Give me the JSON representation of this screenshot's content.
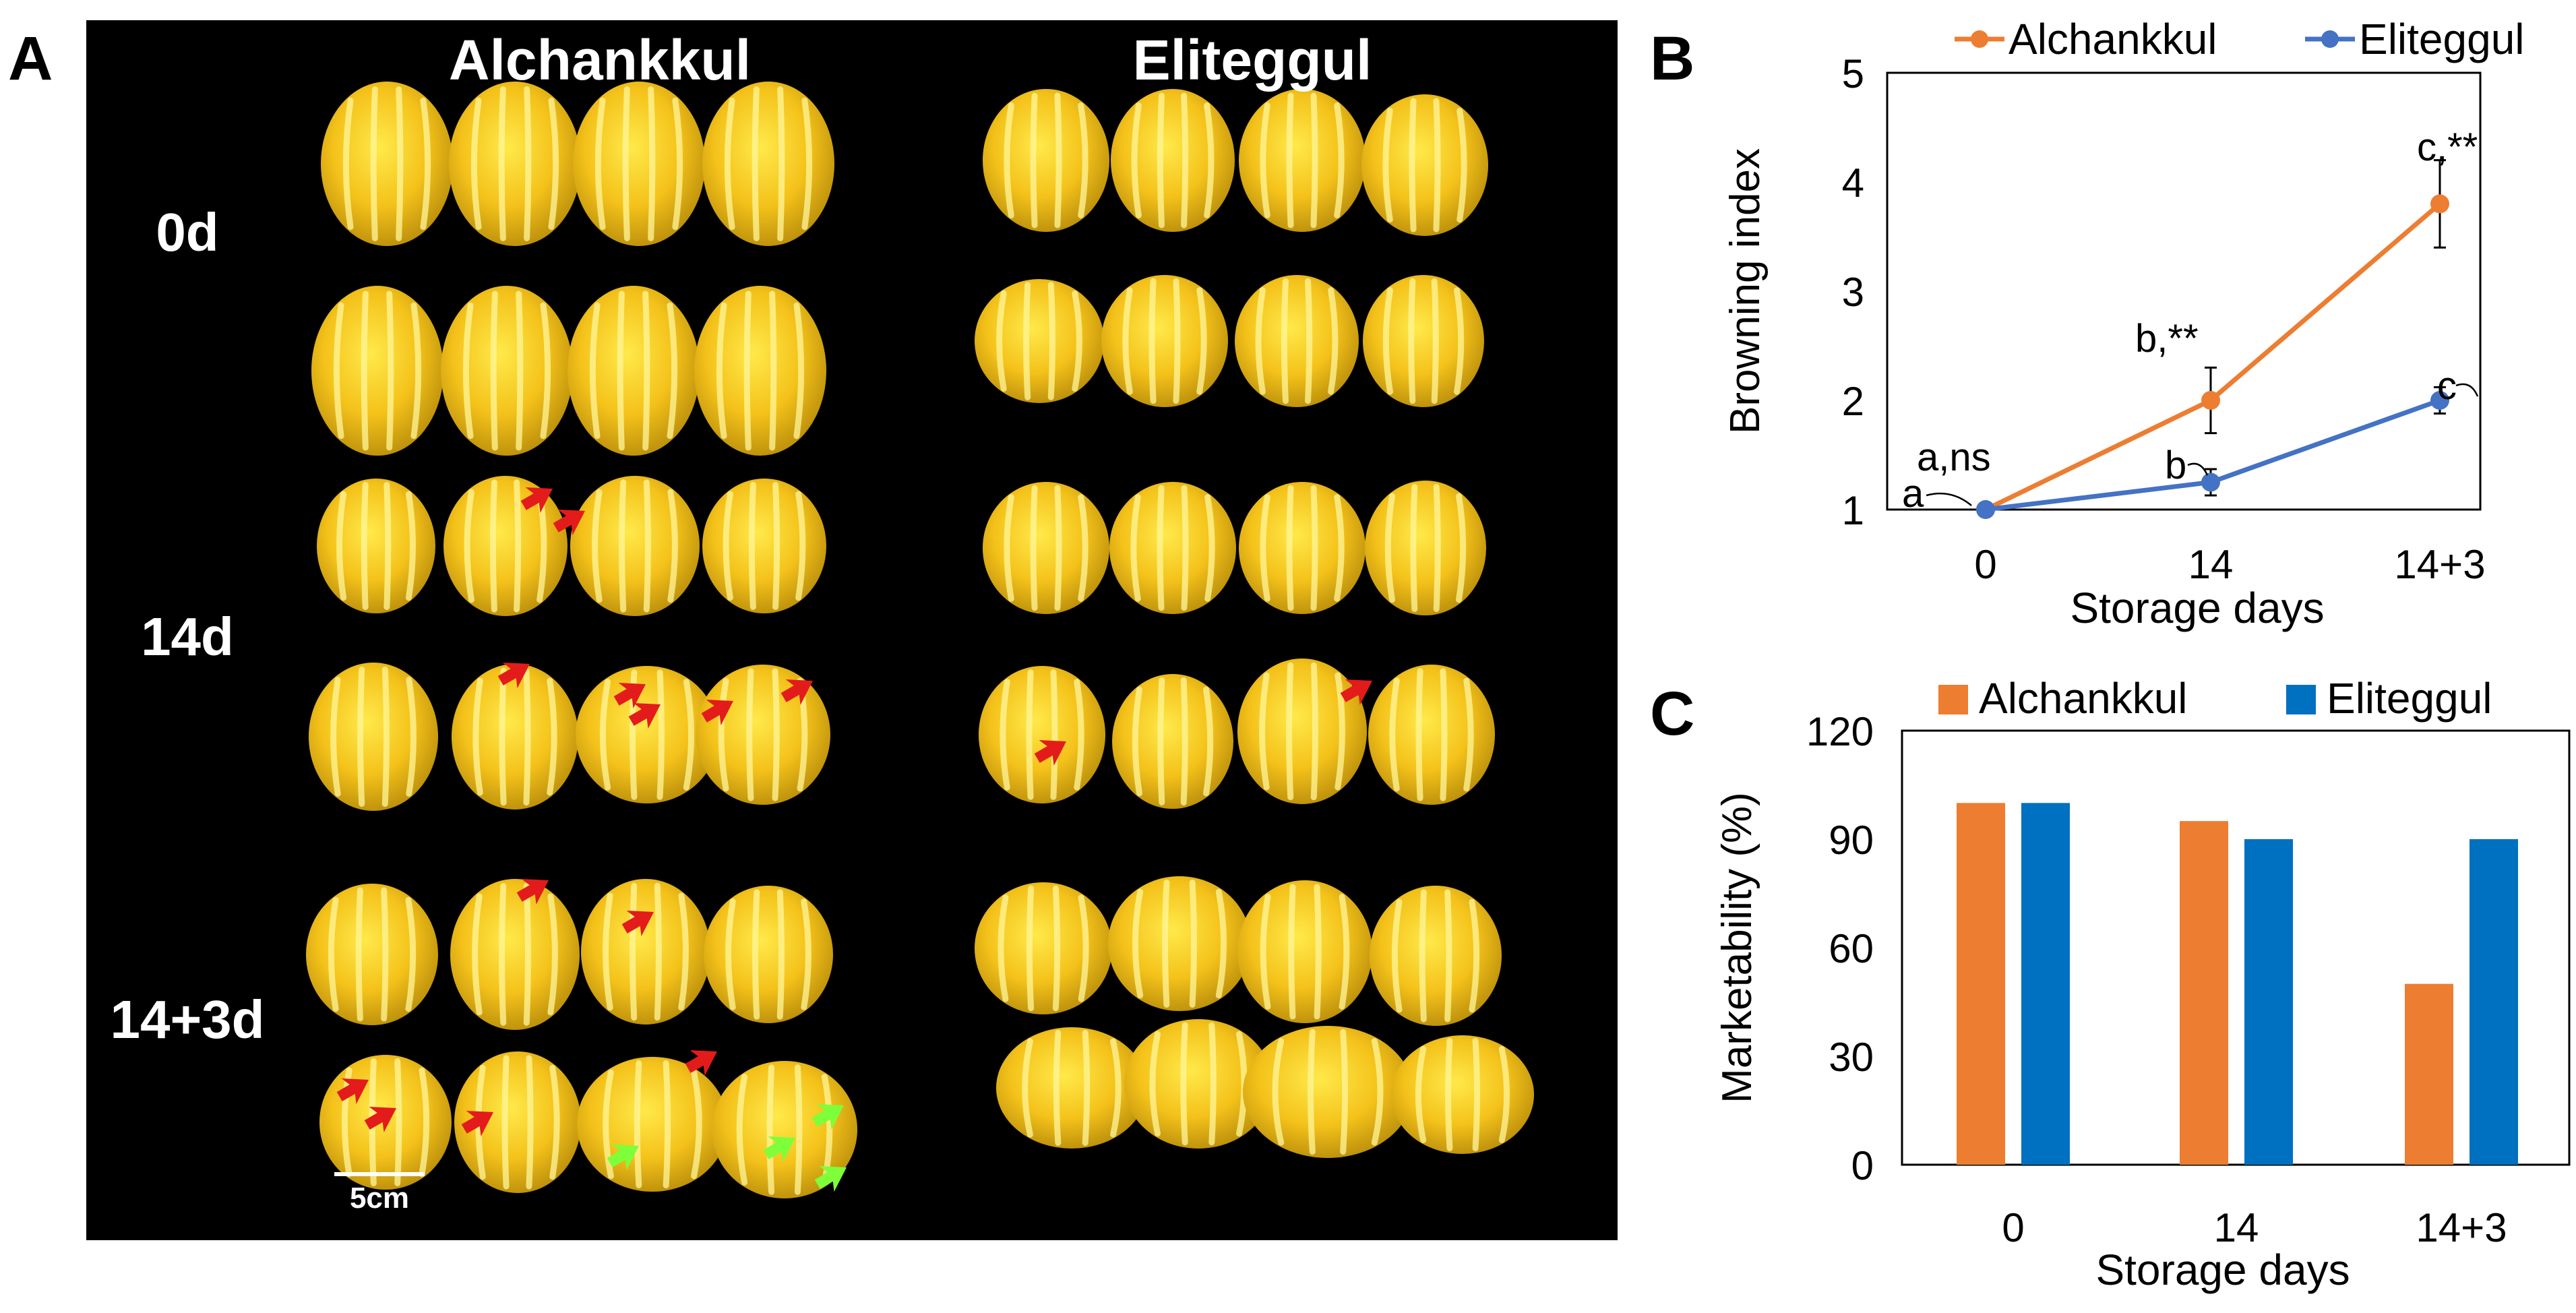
{
  "panel_letters": {
    "a": "A",
    "b": "B",
    "c": "C"
  },
  "photo": {
    "cultivars": [
      "Alchankkul",
      "Eliteggul"
    ],
    "rows": [
      "0d",
      "14d",
      "14+3d"
    ],
    "scale_bar": "5cm"
  },
  "chart_data": [
    {
      "type": "line",
      "panel": "B",
      "x": [
        "0",
        "14",
        "14+3"
      ],
      "xlabel": "Storage days",
      "ylabel": "Browning index",
      "ylim": [
        1,
        5
      ],
      "yticks": [
        "1",
        "2",
        "3",
        "4",
        "5"
      ],
      "grid": false,
      "legend": "top",
      "series": [
        {
          "name": "Alchankkul",
          "color": "#ed7d31",
          "values": [
            1.0,
            2.0,
            3.8
          ],
          "error": [
            0.0,
            0.3,
            0.4
          ]
        },
        {
          "name": "Eliteggul",
          "color": "#4472c4",
          "values": [
            1.0,
            1.25,
            2.0
          ],
          "error": [
            0.0,
            0.12,
            0.12
          ]
        }
      ],
      "annotations": [
        "a",
        "a,ns",
        "b,**",
        "b",
        "c,**",
        "c"
      ]
    },
    {
      "type": "bar",
      "panel": "C",
      "categories": [
        "0",
        "14",
        "14+3"
      ],
      "xlabel": "Storage days",
      "ylabel": "Marketability (%)",
      "ylim": [
        0,
        120
      ],
      "yticks": [
        "0",
        "30",
        "60",
        "90",
        "120"
      ],
      "grid": false,
      "legend": "top",
      "series": [
        {
          "name": "Alchankkul",
          "color": "#ed7d31",
          "values": [
            100,
            95,
            50
          ]
        },
        {
          "name": "Eliteggul",
          "color": "#0070c0",
          "values": [
            100,
            90,
            90
          ]
        }
      ]
    }
  ]
}
